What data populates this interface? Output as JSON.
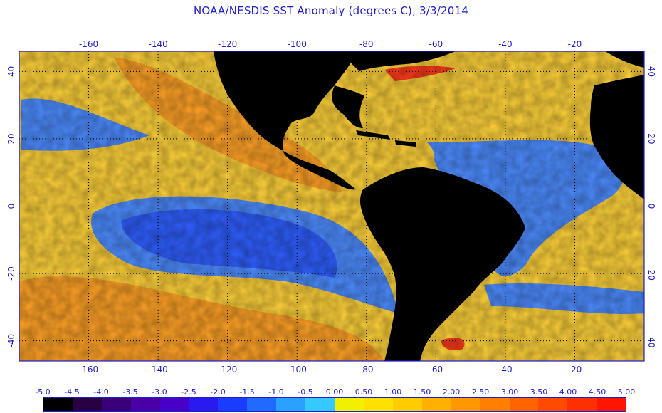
{
  "title": "NOAA/NESDIS SST Anomaly (degrees C), 3/3/2014",
  "map": {
    "lon_range": [
      -180,
      0
    ],
    "lat_range": [
      -46,
      46
    ],
    "lon_ticks": [
      "-160",
      "-140",
      "-120",
      "-100",
      "-80",
      "-60",
      "-40",
      "-20"
    ],
    "lon_tick_values": [
      -160,
      -140,
      -120,
      -100,
      -80,
      -60,
      -40,
      -20
    ],
    "lat_ticks_left": [
      "40",
      "20",
      "0",
      "-20",
      "-40"
    ],
    "lat_ticks_right": [
      "40",
      "20",
      "0",
      "-20",
      "-40"
    ],
    "lat_tick_values": [
      40,
      20,
      0,
      -20,
      -40
    ],
    "grid": "dotted",
    "land_color": "#000000",
    "frame_color": "#1f1fc8"
  },
  "legend": {
    "labels": [
      "-5.0",
      "-4.5",
      "-4.0",
      "-3.5",
      "-3.0",
      "-2.5",
      "-2.0",
      "-1.5",
      "-1.0",
      "-0.5",
      "0.00",
      "0.50",
      "1.00",
      "1.50",
      "2.00",
      "2.50",
      "3.00",
      "3.50",
      "4.00",
      "4.50",
      "5.00"
    ],
    "colors": [
      "#000000",
      "#2a0045",
      "#3a007a",
      "#4a00a6",
      "#4800c8",
      "#2a1af0",
      "#1a3cff",
      "#1f6bff",
      "#2aa0ff",
      "#35c9ff",
      "#f0f000",
      "#ffe000",
      "#ffcc00",
      "#ffb000",
      "#ff9800",
      "#ff8000",
      "#ff6400",
      "#ff4a00",
      "#ff3000",
      "#ff1500"
    ]
  },
  "colors": {
    "warm_base": "#ffd23a",
    "warm_strong": "#ffa226",
    "cool_base": "#4d8cff",
    "cool_strong": "#2f5fff",
    "hot_spot": "#ff3a1a"
  }
}
